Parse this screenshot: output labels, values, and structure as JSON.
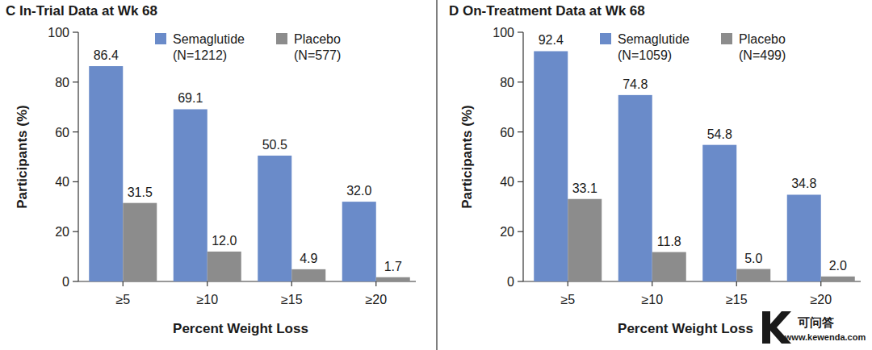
{
  "chart_data": [
    {
      "type": "bar",
      "title": "C In-Trial Data at Wk 68",
      "x_label": "Percent Weight Loss",
      "y_label": "Participants (%)",
      "categories": [
        "≥5",
        "≥10",
        "≥15",
        "≥20"
      ],
      "series": [
        {
          "name": "Semaglutide (N=1212)",
          "color": "#6a8bc9",
          "values": [
            86.4,
            69.1,
            50.5,
            32.0
          ]
        },
        {
          "name": "Placebo (N=577)",
          "color": "#8c8c8c",
          "values": [
            31.5,
            12.0,
            4.9,
            1.7
          ]
        }
      ],
      "value_labels": [
        [
          "86.4",
          "69.1",
          "50.5",
          "32.0"
        ],
        [
          "31.5",
          "12.0",
          "4.9",
          "1.7"
        ]
      ],
      "ylim": [
        0,
        100
      ],
      "yticks": [
        0,
        20,
        40,
        60,
        80,
        100
      ],
      "grid": false,
      "data_labels": true,
      "legend": "top"
    },
    {
      "type": "bar",
      "title": "D On-Treatment Data at Wk 68",
      "x_label": "Percent Weight Loss",
      "y_label": "Participants (%)",
      "categories": [
        "≥5",
        "≥10",
        "≥15",
        "≥20"
      ],
      "series": [
        {
          "name": "Semaglutide (N=1059)",
          "color": "#6a8bc9",
          "values": [
            92.4,
            74.8,
            54.8,
            34.8
          ]
        },
        {
          "name": "Placebo (N=499)",
          "color": "#8c8c8c",
          "values": [
            33.1,
            11.8,
            5.0,
            2.0
          ]
        }
      ],
      "value_labels": [
        [
          "92.4",
          "74.8",
          "54.8",
          "34.8"
        ],
        [
          "33.1",
          "11.8",
          "5.0",
          "2.0"
        ]
      ],
      "ylim": [
        0,
        100
      ],
      "yticks": [
        0,
        20,
        40,
        60,
        80,
        100
      ],
      "grid": false,
      "data_labels": true,
      "legend": "top"
    }
  ],
  "watermark": {
    "text": "可问答",
    "url": "www.kewenda.com"
  }
}
